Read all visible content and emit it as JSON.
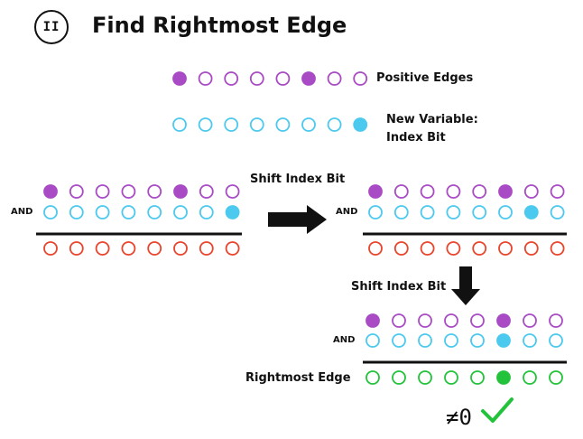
{
  "badge": "II",
  "title": "Find Rightmost Edge",
  "legend": {
    "positive_label": "Positive Edges",
    "index_label_line1": "New Variable:",
    "index_label_line2": "Index Bit"
  },
  "and_label": "AND",
  "shift_label": "Shift Index Bit",
  "result_label": "Rightmost Edge",
  "nonzero": "≠0",
  "colors": {
    "purple": "#a94bc4",
    "cyan": "#4cc9ee",
    "red": "#e8452c",
    "green": "#22c33a",
    "black": "#111111"
  },
  "rows": {
    "positive_edges": [
      1,
      0,
      0,
      0,
      0,
      1,
      0,
      0
    ],
    "index_bit_initial": [
      0,
      0,
      0,
      0,
      0,
      0,
      0,
      1
    ],
    "index_bit_shift1": [
      0,
      0,
      0,
      0,
      0,
      0,
      1,
      0
    ],
    "index_bit_shift2": [
      0,
      0,
      0,
      0,
      0,
      1,
      0,
      0
    ],
    "result_zero": [
      0,
      0,
      0,
      0,
      0,
      0,
      0,
      0
    ],
    "result_final": [
      0,
      0,
      0,
      0,
      0,
      1,
      0,
      0
    ]
  }
}
